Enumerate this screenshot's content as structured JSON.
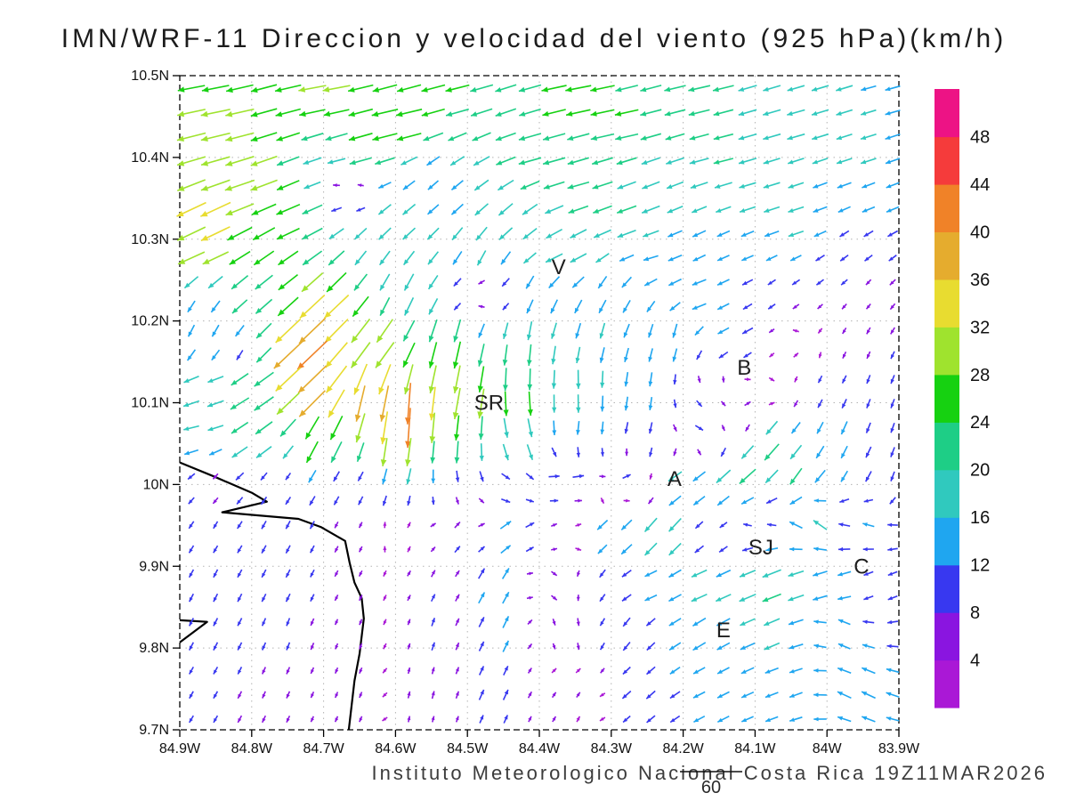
{
  "title": "IMN/WRF-11 Direccion y velocidad del viento (925 hPa)(km/h)",
  "footer": {
    "credit": "Instituto Meteorologico Nacional Costa Rica 19Z11MAR2026",
    "reference_label": "60"
  },
  "chart_data": {
    "type": "quiver",
    "title": "IMN/WRF-11 Direccion y velocidad del viento (925 hPa)(km/h)",
    "units": "km/h",
    "pressure_level": "925 hPa",
    "model_run": "19Z11MAR2026",
    "x_ticks": [
      "84.9W",
      "84.8W",
      "84.7W",
      "84.6W",
      "84.5W",
      "84.4W",
      "84.3W",
      "84.2W",
      "84.1W",
      "84W",
      "83.9W"
    ],
    "y_ticks": [
      "10.5N",
      "10.4N",
      "10.3N",
      "10.2N",
      "10.1N",
      "10N",
      "9.9N",
      "9.8N",
      "9.7N"
    ],
    "lon_range": [
      84.9,
      83.9
    ],
    "lat_range": [
      9.7,
      10.5
    ],
    "grid": "dotted 0.1 degree",
    "legend_position": "right",
    "colorbar": {
      "levels": [
        4,
        8,
        12,
        16,
        20,
        24,
        28,
        32,
        36,
        40,
        44,
        48
      ],
      "colors": [
        "#aa18d6",
        "#8a15e0",
        "#3838f0",
        "#1fa6f0",
        "#30c9be",
        "#1ece86",
        "#16d111",
        "#9fe32e",
        "#e8dc30",
        "#e5ac2e",
        "#f08228",
        "#f53b3b",
        "#ed1385"
      ]
    },
    "reference_vector": {
      "speed_kmh": 60
    },
    "stations": [
      {
        "label": "V",
        "lon": 84.373,
        "lat": 10.266
      },
      {
        "label": "B",
        "lon": 84.115,
        "lat": 10.143
      },
      {
        "label": "SR",
        "lon": 84.47,
        "lat": 10.1
      },
      {
        "label": "A",
        "lon": 84.212,
        "lat": 10.007
      },
      {
        "label": "SJ",
        "lon": 84.092,
        "lat": 9.923
      },
      {
        "label": "C",
        "lon": 83.952,
        "lat": 9.9
      },
      {
        "label": "E",
        "lon": 84.144,
        "lat": 9.822
      }
    ],
    "coastline": {
      "main": [
        [
          84.9,
          10.027
        ],
        [
          84.853,
          10.01
        ],
        [
          84.8,
          9.99
        ],
        [
          84.779,
          9.979
        ],
        [
          84.841,
          9.966
        ],
        [
          84.735,
          9.958
        ],
        [
          84.704,
          9.948
        ],
        [
          84.67,
          9.931
        ],
        [
          84.664,
          9.905
        ],
        [
          84.657,
          9.88
        ],
        [
          84.647,
          9.861
        ],
        [
          84.644,
          9.836
        ],
        [
          84.65,
          9.793
        ],
        [
          84.657,
          9.76
        ],
        [
          84.665,
          9.7
        ]
      ],
      "spit": [
        [
          84.9,
          9.834
        ],
        [
          84.862,
          9.832
        ],
        [
          84.9,
          9.807
        ]
      ]
    },
    "wind_samples": [
      [
        84.87,
        10.484,
        -27,
        -5
      ],
      [
        84.7,
        10.484,
        -28,
        -5
      ],
      [
        84.52,
        10.484,
        -24,
        -6
      ],
      [
        84.35,
        10.484,
        -26,
        -5
      ],
      [
        84.18,
        10.484,
        -22,
        -5
      ],
      [
        84.0,
        10.484,
        -17,
        -5
      ],
      [
        83.91,
        10.484,
        -15,
        -4
      ],
      [
        84.85,
        10.444,
        -30,
        -6
      ],
      [
        84.6,
        10.444,
        -27,
        -6
      ],
      [
        84.3,
        10.444,
        -24,
        -5
      ],
      [
        84.05,
        10.444,
        -18,
        -5
      ],
      [
        84.85,
        10.404,
        -29,
        -8
      ],
      [
        84.65,
        10.404,
        -25,
        -7
      ],
      [
        84.4,
        10.404,
        -23,
        -6
      ],
      [
        84.15,
        10.404,
        -20,
        -5
      ],
      [
        83.95,
        10.404,
        -16,
        -5
      ],
      [
        84.82,
        10.364,
        -30,
        -10
      ],
      [
        84.66,
        10.364,
        -3,
        3
      ],
      [
        84.55,
        10.364,
        -10,
        -9
      ],
      [
        84.35,
        10.364,
        -22,
        -6
      ],
      [
        84.1,
        10.364,
        -17,
        -5
      ],
      [
        83.93,
        10.364,
        -13,
        -5
      ],
      [
        84.86,
        10.324,
        -31,
        -15
      ],
      [
        84.75,
        10.324,
        -24,
        -10
      ],
      [
        84.6,
        10.324,
        -13,
        -11
      ],
      [
        84.45,
        10.324,
        -14,
        -12
      ],
      [
        84.28,
        10.324,
        -20,
        -7
      ],
      [
        84.05,
        10.324,
        -16,
        -5
      ],
      [
        84.87,
        10.276,
        -28,
        -12
      ],
      [
        84.77,
        10.276,
        -20,
        -14
      ],
      [
        84.62,
        10.276,
        -10,
        -14
      ],
      [
        84.48,
        10.276,
        -8,
        -16
      ],
      [
        84.37,
        10.276,
        -18,
        -8
      ],
      [
        84.25,
        10.276,
        -15,
        -4
      ],
      [
        84.12,
        10.276,
        -12,
        -5
      ],
      [
        83.97,
        10.276,
        -8,
        -6
      ],
      [
        84.87,
        10.228,
        -6,
        -11
      ],
      [
        84.8,
        10.228,
        -16,
        -14
      ],
      [
        84.7,
        10.212,
        -26,
        -24
      ],
      [
        84.6,
        10.228,
        -8,
        -18
      ],
      [
        84.48,
        10.228,
        -5,
        4
      ],
      [
        84.4,
        10.228,
        -6,
        -14
      ],
      [
        84.3,
        10.228,
        -7,
        -13
      ],
      [
        84.18,
        10.228,
        -15,
        -5
      ],
      [
        84.07,
        10.228,
        -7,
        -5
      ],
      [
        83.95,
        10.228,
        -4,
        -5
      ],
      [
        84.87,
        10.18,
        -5,
        -12
      ],
      [
        84.82,
        10.164,
        -4,
        -9
      ],
      [
        84.73,
        10.164,
        -32,
        -30
      ],
      [
        84.63,
        10.164,
        -20,
        -26
      ],
      [
        84.52,
        10.164,
        -6,
        -28
      ],
      [
        84.42,
        10.164,
        -2,
        -22
      ],
      [
        84.32,
        10.18,
        -4,
        -16
      ],
      [
        84.22,
        10.18,
        -3,
        -15
      ],
      [
        84.13,
        10.18,
        -12,
        -6
      ],
      [
        84.04,
        10.164,
        3,
        3
      ],
      [
        83.95,
        10.164,
        -3,
        -7
      ],
      [
        84.86,
        10.116,
        -17,
        -4
      ],
      [
        84.8,
        10.116,
        -21,
        -13
      ],
      [
        84.72,
        10.116,
        -30,
        -28
      ],
      [
        84.64,
        10.1,
        -8,
        -38
      ],
      [
        84.58,
        10.084,
        -2,
        -46
      ],
      [
        84.5,
        10.1,
        -6,
        -33
      ],
      [
        84.43,
        10.1,
        2,
        -26
      ],
      [
        84.34,
        10.116,
        1,
        -20
      ],
      [
        84.26,
        10.116,
        -2,
        -15
      ],
      [
        84.17,
        10.1,
        6,
        -6
      ],
      [
        84.1,
        10.1,
        8,
        6
      ],
      [
        84.0,
        10.116,
        -4,
        -8
      ],
      [
        83.93,
        10.116,
        -3,
        -9
      ],
      [
        84.87,
        10.06,
        -16,
        -3
      ],
      [
        84.8,
        10.052,
        -18,
        -12
      ],
      [
        84.7,
        10.052,
        -12,
        -24
      ],
      [
        84.6,
        10.036,
        -4,
        -32
      ],
      [
        84.52,
        10.044,
        -2,
        -24
      ],
      [
        84.43,
        10.052,
        6,
        -18
      ],
      [
        84.34,
        10.06,
        -2,
        -14
      ],
      [
        84.26,
        10.06,
        -3,
        -12
      ],
      [
        84.18,
        10.06,
        10,
        -4
      ],
      [
        84.08,
        10.052,
        -16,
        -18
      ],
      [
        83.98,
        10.06,
        -6,
        -14
      ],
      [
        83.92,
        10.06,
        -3,
        -10
      ],
      [
        84.85,
        10.004,
        -4,
        -5
      ],
      [
        84.76,
        10.004,
        -4,
        -6
      ],
      [
        84.66,
        10.004,
        -5,
        -7
      ],
      [
        84.6,
        10.004,
        -4,
        -12
      ],
      [
        84.52,
        10.004,
        2,
        -10
      ],
      [
        84.44,
        9.996,
        10,
        -4
      ],
      [
        84.36,
        10.004,
        14,
        4
      ],
      [
        84.28,
        10.004,
        10,
        6
      ],
      [
        84.2,
        10.004,
        -16,
        -10
      ],
      [
        84.12,
        10.004,
        -18,
        -16
      ],
      [
        84.04,
        10.004,
        -12,
        -18
      ],
      [
        83.96,
        10.02,
        -6,
        -12
      ],
      [
        83.91,
        10.004,
        -3,
        -10
      ],
      [
        84.85,
        9.94,
        -4,
        -7
      ],
      [
        84.76,
        9.94,
        -4,
        -8
      ],
      [
        84.67,
        9.94,
        -3,
        -6
      ],
      [
        84.6,
        9.94,
        1,
        4
      ],
      [
        84.52,
        9.94,
        6,
        8
      ],
      [
        84.44,
        9.94,
        12,
        10
      ],
      [
        84.36,
        9.94,
        6,
        4
      ],
      [
        84.3,
        9.94,
        -14,
        -12
      ],
      [
        84.23,
        9.94,
        -14,
        -16
      ],
      [
        84.16,
        9.94,
        -6,
        -6
      ],
      [
        84.1,
        9.956,
        -8,
        4
      ],
      [
        84.02,
        9.956,
        -14,
        12
      ],
      [
        83.94,
        9.956,
        -12,
        4
      ],
      [
        84.85,
        9.876,
        -4,
        -8
      ],
      [
        84.75,
        9.876,
        -4,
        -8
      ],
      [
        84.65,
        9.876,
        -3,
        -6
      ],
      [
        84.55,
        9.876,
        4,
        8
      ],
      [
        84.46,
        9.876,
        7,
        14
      ],
      [
        84.38,
        9.876,
        7,
        -5
      ],
      [
        84.32,
        9.884,
        -6,
        -8
      ],
      [
        84.25,
        9.876,
        -13,
        -5
      ],
      [
        84.17,
        9.876,
        -17,
        -7
      ],
      [
        84.08,
        9.876,
        -20,
        -8
      ],
      [
        84.0,
        9.876,
        -15,
        -5
      ],
      [
        83.93,
        9.876,
        -9,
        -4
      ],
      [
        84.85,
        9.82,
        -4,
        -8
      ],
      [
        84.75,
        9.82,
        -3,
        -8
      ],
      [
        84.65,
        9.82,
        -2,
        -5
      ],
      [
        84.55,
        9.82,
        3,
        9
      ],
      [
        84.45,
        9.82,
        6,
        13
      ],
      [
        84.36,
        9.82,
        2,
        -9
      ],
      [
        84.28,
        9.82,
        -7,
        -9
      ],
      [
        84.18,
        9.82,
        -13,
        -8
      ],
      [
        84.08,
        9.82,
        -16,
        -7
      ],
      [
        83.98,
        9.82,
        -12,
        6
      ],
      [
        84.86,
        9.748,
        -4,
        -7
      ],
      [
        84.76,
        9.748,
        -3,
        -7
      ],
      [
        84.66,
        9.748,
        -2,
        -5
      ],
      [
        84.56,
        9.748,
        2,
        8
      ],
      [
        84.46,
        9.748,
        5,
        11
      ],
      [
        84.36,
        9.748,
        4,
        6
      ],
      [
        84.26,
        9.748,
        -9,
        -8
      ],
      [
        84.16,
        9.748,
        -12,
        -6
      ],
      [
        84.06,
        9.748,
        -13,
        -5
      ],
      [
        83.96,
        9.748,
        -14,
        7
      ]
    ]
  }
}
